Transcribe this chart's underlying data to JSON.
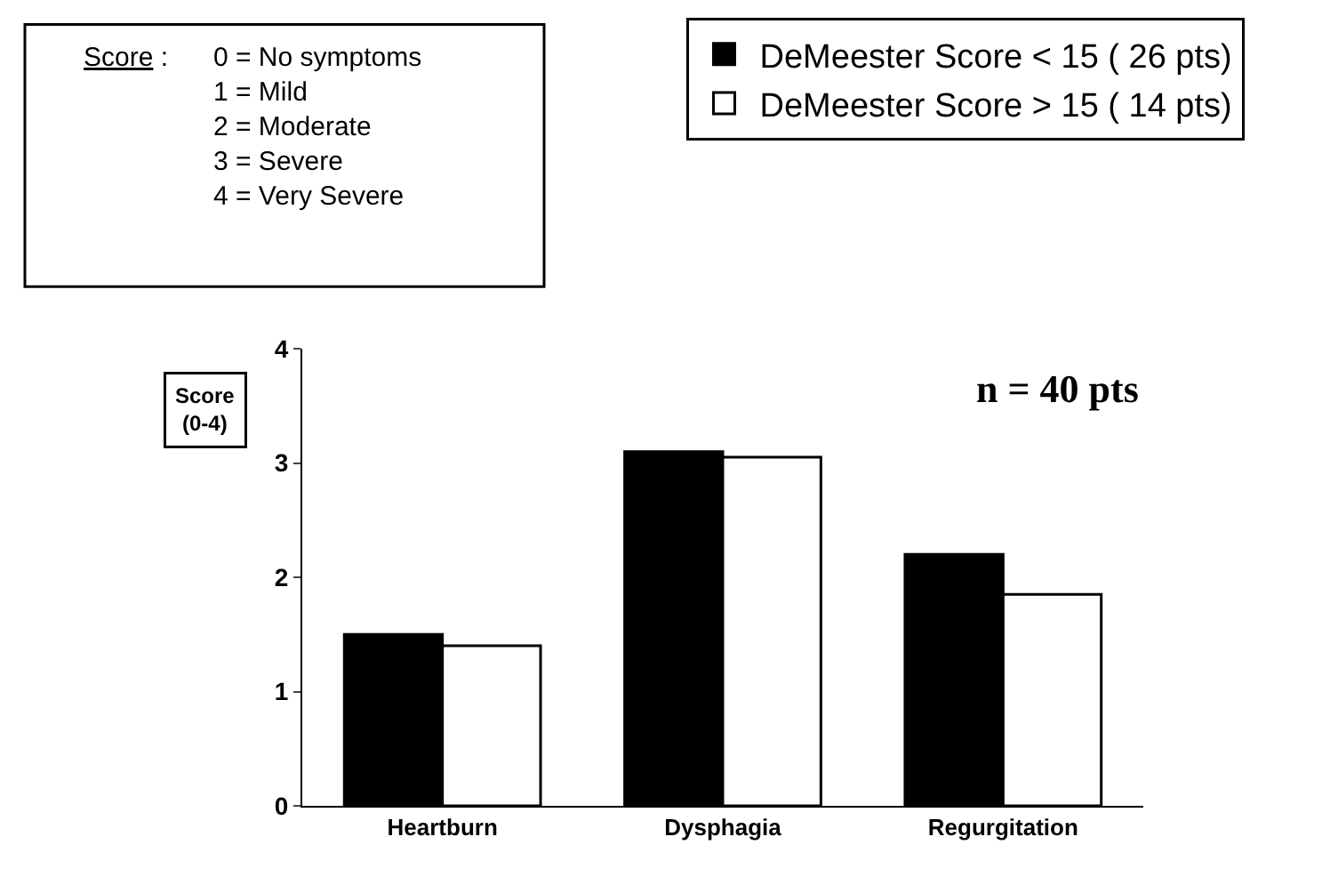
{
  "chart_data": {
    "type": "bar",
    "categories": [
      "Heartburn",
      "Dysphagia",
      "Regurgitation"
    ],
    "series": [
      {
        "name": "DeMeester Score < 15 ( 26 pts)",
        "color": "#000000",
        "values": [
          1.5,
          3.1,
          2.2
        ]
      },
      {
        "name": "DeMeester Score > 15 ( 14 pts)",
        "color": "#ffffff",
        "values": [
          1.4,
          3.05,
          1.85
        ]
      }
    ],
    "ylabel": "Score (0-4)",
    "ylim": [
      0,
      4
    ],
    "yticks": [
      0,
      1,
      2,
      3,
      4
    ],
    "grid": false,
    "legend": "top right",
    "annotations": [
      "Score :",
      "0 = No symptoms",
      "1 = Mild",
      "2 = Moderate",
      "3 = Severe",
      "4 = Very Severe",
      "n = 40 pts"
    ]
  }
}
